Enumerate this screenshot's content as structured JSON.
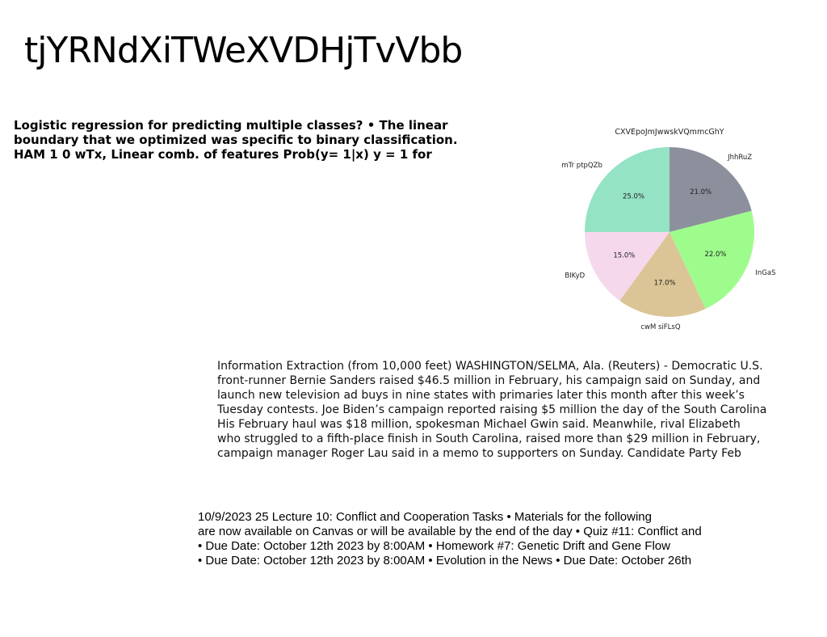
{
  "page": {
    "title": "tjYRNdXiTWeXVDHjTvVbb"
  },
  "text_block_1": {
    "lines": [
      "Logistic regression for predicting multiple classes? • The linear",
      "boundary that we optimized was specific to binary classification.",
      "HAM 1 0 wTx, Linear comb. of features Prob(y= 1|x) y = 1 for"
    ]
  },
  "text_block_2": {
    "lines": [
      "Information Extraction (from 10,000 feet) WASHINGTON/SELMA, Ala. (Reuters) - Democratic U.S.",
      "front-runner Bernie Sanders raised $46.5 million in February, his campaign said on Sunday, and",
      "launch new television ad buys in nine states with primaries later this month after this week’s",
      "Tuesday contests. Joe Biden’s campaign reported raising $5 million the day of the South Carolina",
      "His February haul was $18 million, spokesman Michael Gwin said. Meanwhile, rival Elizabeth",
      "who struggled to a fifth-place finish in South Carolina, raised more than $29 million in February,",
      "campaign manager Roger Lau said in a memo to supporters on Sunday. Candidate Party Feb"
    ]
  },
  "text_block_3": {
    "lines": [
      "10/9/2023 25 Lecture 10: Conflict and Cooperation Tasks • Materials for the following",
      "are now available on Canvas or will be available by the end of the day • Quiz #11: Conflict and",
      "• Due Date: October 12th 2023 by 8:00AM • Homework #7: Genetic Drift and Gene Flow",
      "• Due Date: October 12th 2023 by 8:00AM • Evolution in the News • Due Date: October 26th"
    ]
  },
  "chart_data": {
    "type": "pie",
    "title": "CXVEpoJmJwwskVQmmcGhY",
    "start_angle_deg": 90,
    "direction": "clockwise",
    "slices": [
      {
        "label": "JhhRuZ",
        "value": 21.0,
        "pct_label": "21.0%",
        "color": "#8c909c"
      },
      {
        "label": "InGaS",
        "value": 22.0,
        "pct_label": "22.0%",
        "color": "#9efc8d"
      },
      {
        "label": "cwM siFLsQ",
        "value": 17.0,
        "pct_label": "17.0%",
        "color": "#dbc596"
      },
      {
        "label": "BIKyD",
        "value": 15.0,
        "pct_label": "15.0%",
        "color": "#f5d8ec"
      },
      {
        "label": "mTr ptpQZb",
        "value": 25.0,
        "pct_label": "25.0%",
        "color": "#94e3c5"
      }
    ]
  }
}
